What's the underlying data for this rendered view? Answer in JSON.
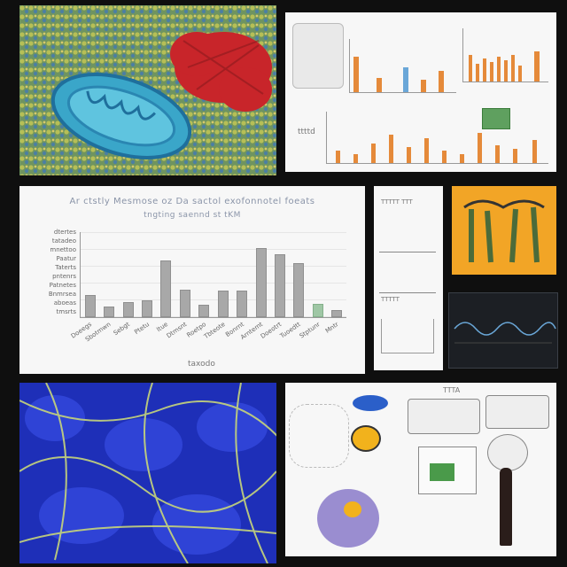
{
  "main_chart": {
    "title_line1": "Ar ctstly Mesmose oz Da sactol exofonnotel foeats",
    "title_line2": "tngting saennd st tKM",
    "x_axis_label": "taxodo",
    "y_labels": [
      "dtertes",
      "tatadeo",
      "mnettoo",
      "Paatur",
      "Taterts",
      "pntenrs",
      "Patnetes",
      "Bnmrsea",
      "aboeas",
      "tmsrts"
    ],
    "x_labels": [
      "Doeegs",
      "Sbotmwn",
      "Sebgt",
      "Ptetu",
      "ltue",
      "Dtmsnt",
      "Roetpo",
      "Tbteote",
      "Bonrnt",
      "Arntemt",
      "Doeotrt",
      "Tuoedtt",
      "Stptunr",
      "Mntr"
    ]
  },
  "chart_data": {
    "type": "bar",
    "title": "Ar ctstly Mesmose oz Da sactol exofonnotel foeats",
    "xlabel": "taxodo",
    "ylabel": "",
    "categories": [
      "Doeegs",
      "Sbotmwn",
      "Sebgt",
      "Ptetu",
      "ltue",
      "Dtmsnt",
      "Roetpo",
      "Tbteote",
      "Bonrnt",
      "Arntemt",
      "Doeotrt",
      "Tuoedtt",
      "Stptunr",
      "Mntr"
    ],
    "values": [
      26,
      13,
      18,
      20,
      67,
      32,
      15,
      31,
      31,
      81,
      74,
      64,
      16,
      8
    ],
    "colors": [
      "gray",
      "gray",
      "gray",
      "gray",
      "gray",
      "gray",
      "gray",
      "gray",
      "gray",
      "gray",
      "gray",
      "gray",
      "green",
      "gray"
    ],
    "ylim": [
      0,
      100
    ]
  },
  "top_right": {
    "small_label": "ttttd"
  },
  "mid_right": {
    "label_a": "TTTTT TTT",
    "label_b": "TTTTT"
  },
  "bottom_right": {
    "header": "TTTA"
  },
  "colors": {
    "bar_gray": "#a8a8a8",
    "bar_green": "#9fc7a5",
    "accent_orange": "#e58a3a",
    "accent_red": "#c8252a"
  }
}
